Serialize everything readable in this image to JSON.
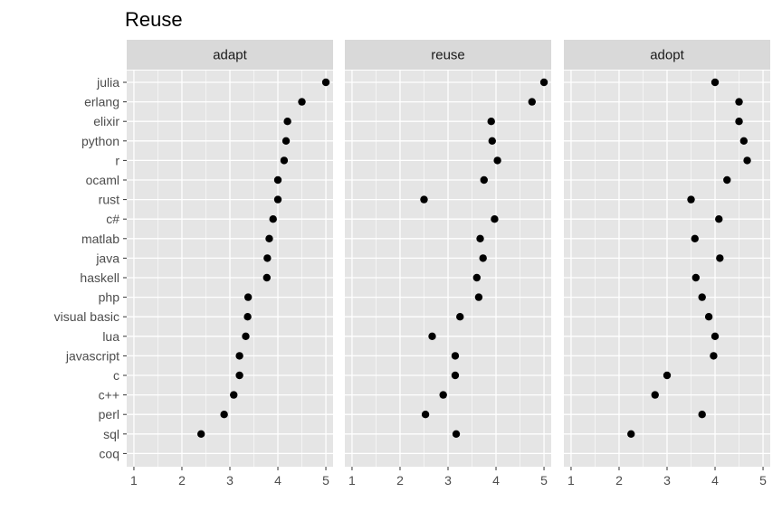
{
  "chart_data": {
    "type": "scatter",
    "title": "Reuse",
    "xlabel": "",
    "ylabel": "",
    "xlim": [
      0.85,
      5.15
    ],
    "x_ticks": [
      "1",
      "2",
      "3",
      "4",
      "5"
    ],
    "categories": [
      "julia",
      "erlang",
      "elixir",
      "python",
      "r",
      "ocaml",
      "rust",
      "c#",
      "matlab",
      "java",
      "haskell",
      "php",
      "visual basic",
      "lua",
      "javascript",
      "c",
      "c++",
      "perl",
      "sql",
      "coq"
    ],
    "grid": true,
    "legend": "none",
    "facets": [
      {
        "label": "adapt",
        "values": [
          5.0,
          4.5,
          4.2,
          4.17,
          4.13,
          4.0,
          4.0,
          3.9,
          3.82,
          3.78,
          3.77,
          3.38,
          3.37,
          3.33,
          3.2,
          3.2,
          3.08,
          2.88,
          2.4,
          null
        ]
      },
      {
        "label": "reuse",
        "values": [
          5.0,
          4.75,
          3.9,
          3.92,
          4.03,
          3.75,
          2.5,
          3.97,
          3.67,
          3.73,
          3.6,
          3.64,
          3.25,
          2.67,
          3.15,
          3.15,
          2.9,
          2.53,
          3.17,
          null
        ]
      },
      {
        "label": "adopt",
        "values": [
          4.0,
          4.5,
          4.5,
          4.6,
          4.67,
          4.25,
          3.5,
          4.08,
          3.58,
          4.1,
          3.6,
          3.73,
          3.87,
          4.0,
          3.97,
          3.0,
          2.75,
          3.73,
          2.25,
          null
        ]
      }
    ]
  },
  "colors": {
    "panel_background": "#e5e5e5",
    "grid_major": "#ffffff",
    "strip_background": "#d9d9d9",
    "point": "#000000"
  }
}
